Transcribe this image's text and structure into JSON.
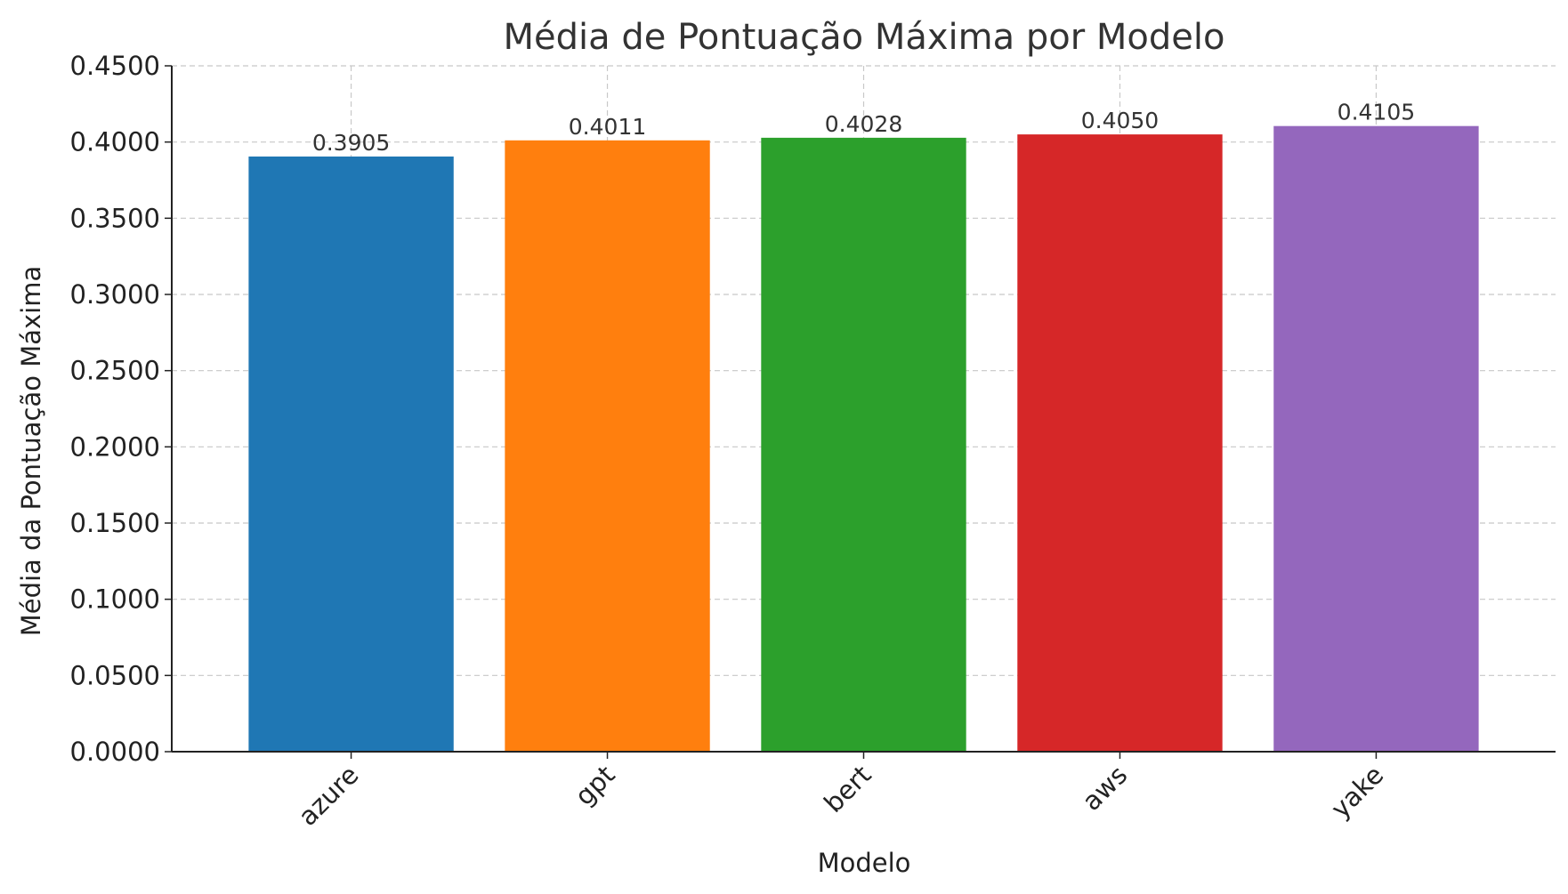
{
  "chart_data": {
    "type": "bar",
    "title": "Média de Pontuação Máxima por Modelo",
    "xlabel": "Modelo",
    "ylabel": "Média da Pontuação Máxima",
    "categories": [
      "azure",
      "gpt",
      "bert",
      "aws",
      "yake"
    ],
    "values": [
      0.3905,
      0.4011,
      0.4028,
      0.405,
      0.4105
    ],
    "value_labels": [
      "0.3905",
      "0.4011",
      "0.4028",
      "0.4050",
      "0.4105"
    ],
    "colors": [
      "#1f77b4",
      "#ff7f0e",
      "#2ca02c",
      "#d62728",
      "#9467bd"
    ],
    "ylim": [
      0,
      0.45
    ],
    "yticks": [
      0,
      0.05,
      0.1,
      0.15,
      0.2,
      0.25,
      0.3,
      0.35,
      0.4,
      0.45
    ],
    "ytick_labels": [
      "0.0000",
      "0.0500",
      "0.1000",
      "0.1500",
      "0.2000",
      "0.2500",
      "0.3000",
      "0.3500",
      "0.4000",
      "0.4500"
    ],
    "grid": true,
    "xtick_rotation_deg": 45
  }
}
